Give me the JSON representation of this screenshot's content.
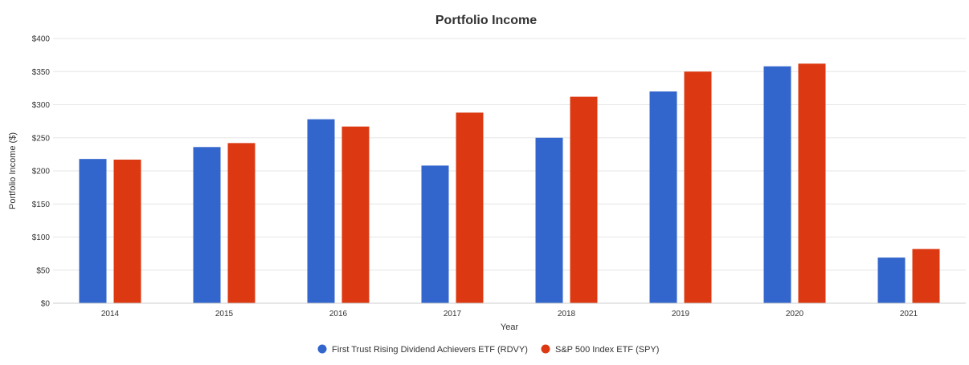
{
  "chart_data": {
    "type": "bar",
    "title": "Portfolio Income",
    "xlabel": "Year",
    "ylabel": "Portfolio Income ($)",
    "categories": [
      "2014",
      "2015",
      "2016",
      "2017",
      "2018",
      "2019",
      "2020",
      "2021"
    ],
    "ylim": [
      0,
      400
    ],
    "yticks": [
      0,
      50,
      100,
      150,
      200,
      250,
      300,
      350,
      400
    ],
    "ytick_labels": [
      "$0",
      "$50",
      "$100",
      "$150",
      "$200",
      "$250",
      "$300",
      "$350",
      "$400"
    ],
    "grid": true,
    "legend_position": "bottom",
    "series": [
      {
        "name": "First Trust Rising Dividend Achievers ETF (RDVY)",
        "color": "#3366cc",
        "values": [
          218,
          236,
          278,
          208,
          250,
          320,
          358,
          69
        ]
      },
      {
        "name": "S&P 500 Index ETF (SPY)",
        "color": "#dc3912",
        "values": [
          217,
          242,
          267,
          288,
          312,
          350,
          362,
          82
        ]
      }
    ]
  }
}
